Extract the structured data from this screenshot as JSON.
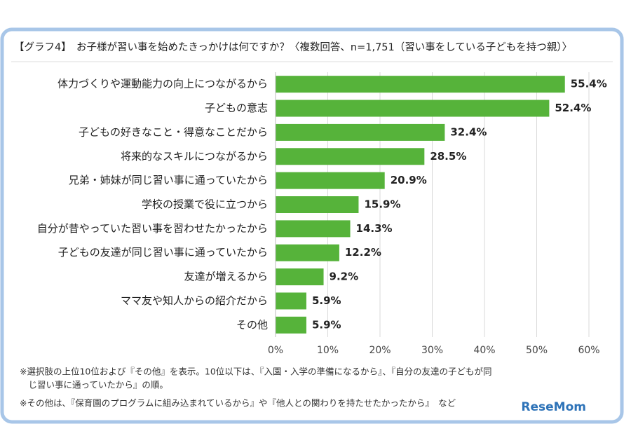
{
  "chart_data": {
    "type": "bar",
    "orientation": "horizontal",
    "title": "【グラフ4】　お子様が習い事を始めたきっかけは何ですか？〈複数回答、n=1,751（習い事をしている子どもを持つ親）〉",
    "categories": [
      "体力づくりや運動能力の向上につながるから",
      "子どもの意志",
      "子どもの好きなこと・得意なことだから",
      "将来的なスキルにつながるから",
      "兄弟・姉妹が同じ習い事に通っていたから",
      "学校の授業で役に立つから",
      "自分が昔やっていた習い事を習わせたかったから",
      "子どもの友達が同じ習い事に通っていたから",
      "友達が増えるから",
      "ママ友や知人からの紹介だから",
      "その他"
    ],
    "values": [
      55.4,
      52.4,
      32.4,
      28.5,
      20.9,
      15.9,
      14.3,
      12.2,
      9.2,
      5.9,
      5.9
    ],
    "value_labels": [
      "55.4%",
      "52.4%",
      "32.4%",
      "28.5%",
      "20.9%",
      "15.9%",
      "14.3%",
      "12.2%",
      "9.2%",
      "5.9%",
      "5.9%"
    ],
    "color": "#56b33a",
    "xlim": [
      0,
      60
    ],
    "xticks": [
      {
        "value": 0,
        "label": "0%"
      },
      {
        "value": 10,
        "label": "10%"
      },
      {
        "value": 20,
        "label": "20%"
      },
      {
        "value": 30,
        "label": "30%"
      },
      {
        "value": 40,
        "label": "40%"
      },
      {
        "value": 50,
        "label": "50%"
      },
      {
        "value": 60,
        "label": "60%"
      }
    ],
    "grid": true,
    "notes": [
      "※選択肢の上位10位および『その他』を表示。10位以下は、『入園・入学の準備になるから』、『自分の友達の子どもが同",
      "　じ習い事に通っていたから』の順。",
      "※その他は、『保育園のプログラムに組み込まれているから』や『他人との関わりを持たせたかったから』　など"
    ],
    "watermark": "ReseMom"
  }
}
